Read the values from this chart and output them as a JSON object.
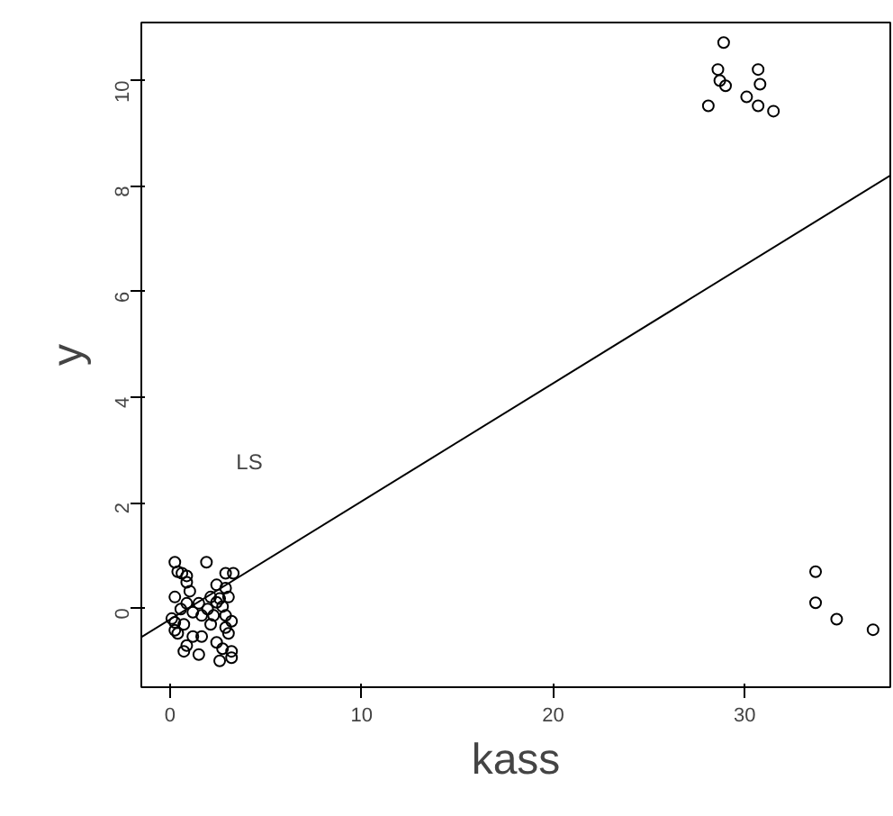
{
  "chart_data": {
    "type": "scatter",
    "xlabel": "kass",
    "ylabel": "y",
    "xlim": [
      -1.5,
      37.6
    ],
    "ylim": [
      -1.5,
      11.1
    ],
    "xticks": [
      0,
      10,
      20,
      30
    ],
    "yticks": [
      0,
      2,
      4,
      6,
      8,
      10
    ],
    "grid": false,
    "marker": "circle",
    "annotations": [
      "LS"
    ],
    "series": [
      {
        "color": "#000000",
        "x": [
          0.25,
          0.4,
          0.62,
          0.87,
          1.9,
          2.9,
          3.3,
          0.87,
          0.25,
          1.03,
          2.43,
          2.9,
          2.12,
          2.59,
          3.05,
          0.87,
          1.5,
          2.43,
          2.74,
          0.56,
          1.19,
          1.65,
          1.96,
          2.27,
          0.09,
          0.25,
          0.72,
          2.9,
          3.21,
          0.4,
          1.19,
          1.65,
          2.9,
          3.05,
          0.87,
          0.72,
          1.5,
          2.43,
          2.74,
          3.21,
          2.59,
          3.21,
          0.25,
          2.12,
          28.9,
          28.6,
          28.7,
          29.0,
          28.1,
          30.1,
          30.7,
          30.8,
          30.7,
          31.5,
          33.7,
          33.7,
          34.8,
          36.7
        ],
        "values": [
          0.87,
          0.69,
          0.66,
          0.61,
          0.87,
          0.66,
          0.66,
          0.49,
          0.21,
          0.32,
          0.44,
          0.38,
          0.21,
          0.18,
          0.21,
          0.09,
          0.09,
          0.11,
          0.03,
          -0.02,
          -0.08,
          -0.14,
          -0.02,
          -0.14,
          -0.2,
          -0.27,
          -0.31,
          -0.14,
          -0.25,
          -0.48,
          -0.54,
          -0.54,
          -0.37,
          -0.48,
          -0.71,
          -0.82,
          -0.88,
          -0.65,
          -0.77,
          -0.82,
          -1.0,
          -0.94,
          -0.42,
          -0.31,
          10.72,
          10.21,
          10.0,
          9.9,
          9.52,
          9.69,
          10.21,
          9.93,
          9.52,
          9.42,
          0.69,
          0.1,
          -0.21,
          -0.41
        ]
      },
      {
        "type": "line",
        "color": "#000000",
        "line_style": "solid",
        "marker": "none",
        "x": [
          -1.5,
          37.6
        ],
        "values": [
          -0.55,
          8.2
        ]
      }
    ]
  }
}
